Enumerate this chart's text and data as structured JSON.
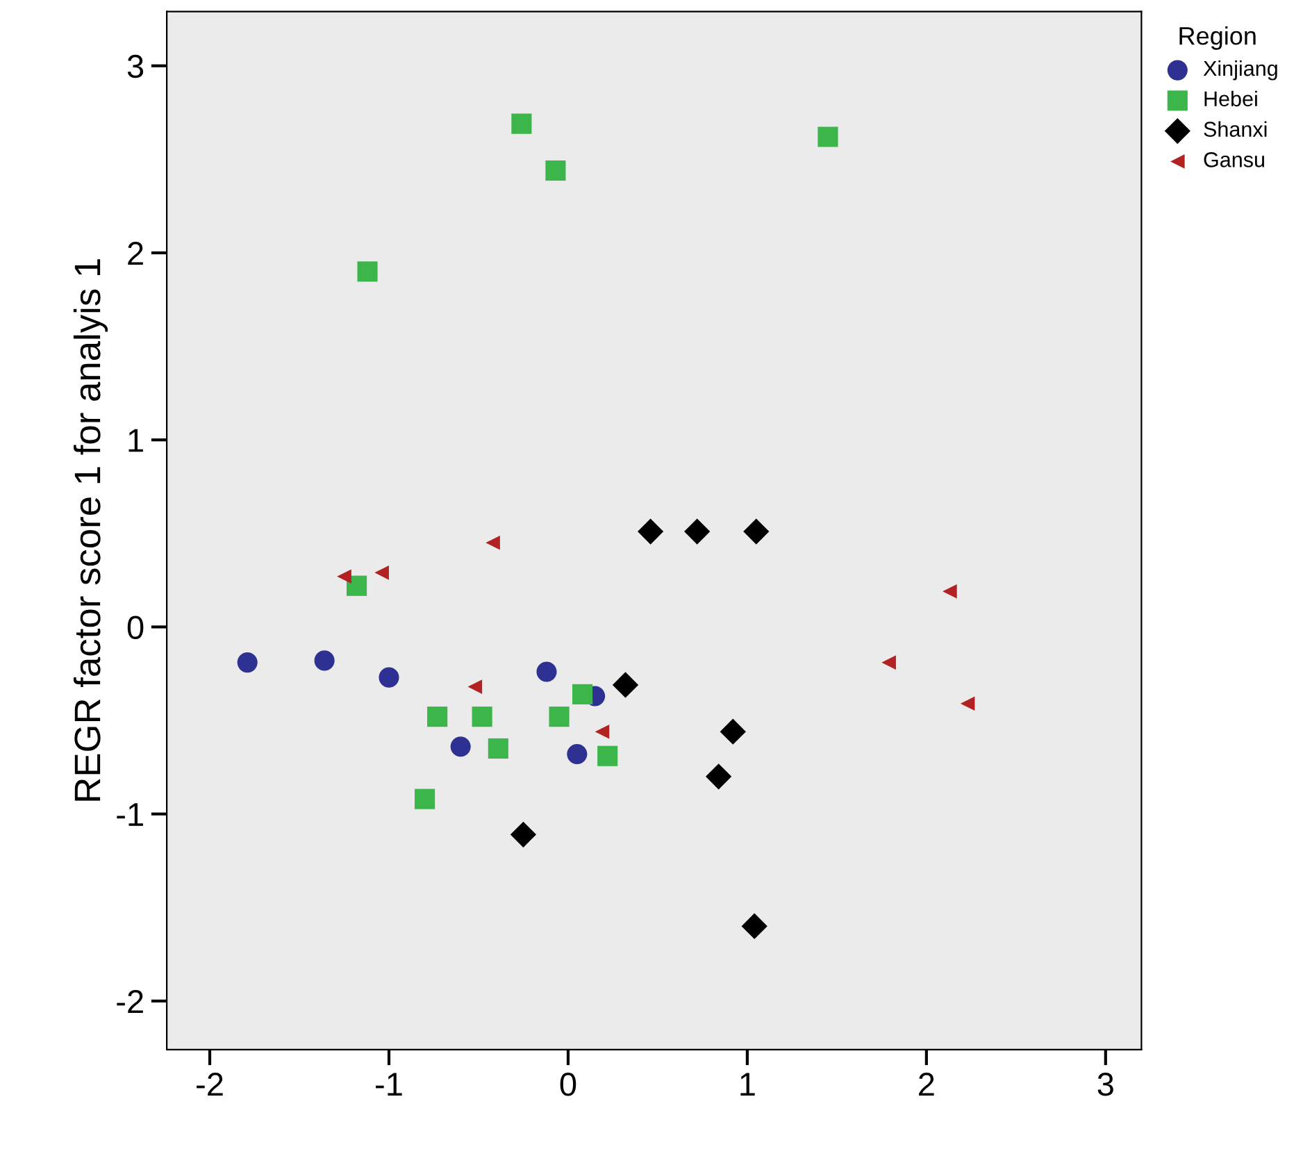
{
  "chart_data": {
    "type": "scatter",
    "ylabel": "REGR factor score 1 for analyis 1",
    "legend_title": "Region",
    "legend": "top right",
    "grid": false,
    "xlim": [
      -2.24,
      3.2
    ],
    "ylim": [
      -2.26,
      3.29
    ],
    "xticks": [
      -2,
      -1,
      0,
      1,
      2,
      3
    ],
    "yticks": [
      -2,
      -1,
      0,
      1,
      2,
      3
    ],
    "series": [
      {
        "name": "Xinjiang",
        "color": "#2e3192",
        "marker": "circle",
        "x": [
          -1.79,
          -1.36,
          -1.0,
          -0.6,
          -0.12,
          0.15,
          0.05
        ],
        "values": [
          -0.19,
          -0.18,
          -0.27,
          -0.64,
          -0.24,
          -0.37,
          -0.68
        ]
      },
      {
        "name": "Hebei",
        "color": "#3cb54a",
        "marker": "square",
        "x": [
          -0.26,
          -0.07,
          1.45,
          -1.12,
          -1.18,
          -0.73,
          -0.48,
          -0.39,
          -0.8,
          -0.05,
          0.08,
          0.22
        ],
        "values": [
          2.69,
          2.44,
          2.62,
          1.9,
          0.22,
          -0.48,
          -0.48,
          -0.65,
          -0.92,
          -0.48,
          -0.36,
          -0.69
        ]
      },
      {
        "name": "Shanxi",
        "color": "#000000",
        "marker": "diamond",
        "x": [
          0.46,
          0.72,
          1.05,
          0.32,
          0.92,
          0.84,
          -0.25,
          1.04
        ],
        "values": [
          0.51,
          0.51,
          0.51,
          -0.31,
          -0.56,
          -0.8,
          -1.11,
          -1.6
        ]
      },
      {
        "name": "Gansu",
        "color": "#b22222",
        "marker": "triangle",
        "x": [
          -1.25,
          -1.04,
          -0.42,
          -0.52,
          0.19,
          1.79,
          2.13,
          2.23
        ],
        "values": [
          0.27,
          0.29,
          0.45,
          -0.32,
          -0.56,
          -0.19,
          0.19,
          -0.41
        ]
      }
    ]
  }
}
